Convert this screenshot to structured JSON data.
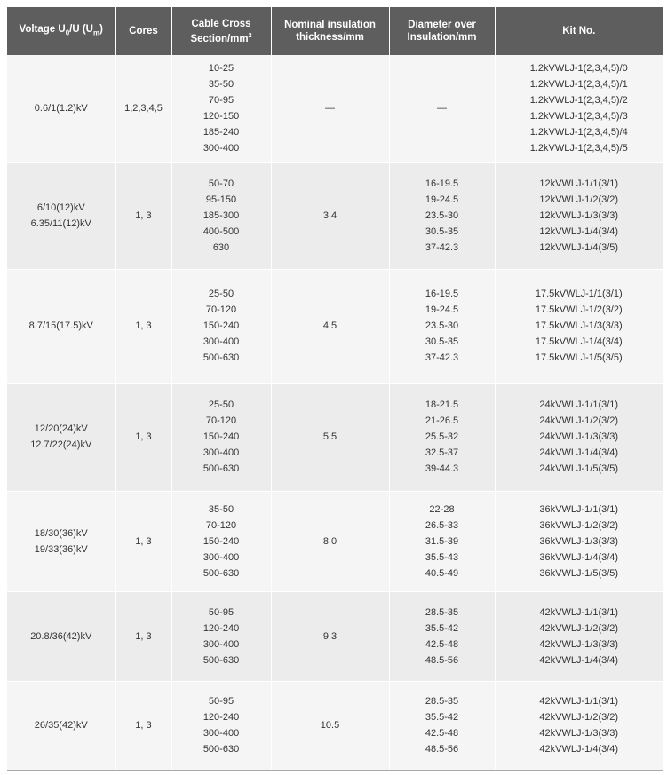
{
  "header": {
    "voltage": {
      "prefix": "Voltage U",
      "sub1": "0",
      "mid": "/U (U",
      "sub2": "m",
      "suffix": ")"
    },
    "cores": "Cores",
    "cross_section": {
      "line1": "Cable Cross",
      "line2": "Section/mm",
      "sup": "2"
    },
    "insulation": {
      "line1": "Nominal insulation",
      "line2": "thickness/mm"
    },
    "diameter": {
      "line1": "Diameter over",
      "line2": "Insulation/mm"
    },
    "kit": "Kit No."
  },
  "rows": [
    {
      "voltage": [
        "0.6/1(1.2)kV"
      ],
      "cores": "1,2,3,4,5",
      "sections": [
        "10-25",
        "35-50",
        "70-95",
        "120-150",
        "185-240",
        "300-400"
      ],
      "insulation": "—",
      "diameters": [
        "—"
      ],
      "kits": [
        "1.2kVWLJ-1(2,3,4,5)/0",
        "1.2kVWLJ-1(2,3,4,5)/1",
        "1.2kVWLJ-1(2,3,4,5)/2",
        "1.2kVWLJ-1(2,3,4,5)/3",
        "1.2kVWLJ-1(2,3,4,5)/4",
        "1.2kVWLJ-1(2,3,4,5)/5"
      ]
    },
    {
      "voltage": [
        "6/10(12)kV",
        "6.35/11(12)kV"
      ],
      "cores": "1, 3",
      "sections": [
        "50-70",
        "95-150",
        "185-300",
        "400-500",
        "630"
      ],
      "insulation": "3.4",
      "diameters": [
        "16-19.5",
        "19-24.5",
        "23.5-30",
        "30.5-35",
        "37-42.3"
      ],
      "kits": [
        "12kVWLJ-1/1(3/1)",
        "12kVWLJ-1/2(3/2)",
        "12kVWLJ-1/3(3/3)",
        "12kVWLJ-1/4(3/4)",
        "12kVWLJ-1/4(3/5)"
      ]
    },
    {
      "voltage": [
        "8.7/15(17.5)kV"
      ],
      "cores": "1, 3",
      "sections": [
        "25-50",
        "70-120",
        "150-240",
        "300-400",
        "500-630"
      ],
      "insulation": "4.5",
      "diameters": [
        "16-19.5",
        "19-24.5",
        "23.5-30",
        "30.5-35",
        "37-42.3"
      ],
      "kits": [
        "17.5kVWLJ-1/1(3/1)",
        "17.5kVWLJ-1/2(3/2)",
        "17.5kVWLJ-1/3(3/3)",
        "17.5kVWLJ-1/4(3/4)",
        "17.5kVWLJ-1/5(3/5)"
      ]
    },
    {
      "voltage": [
        "12/20(24)kV",
        "12.7/22(24)kV"
      ],
      "cores": "1, 3",
      "sections": [
        "25-50",
        "70-120",
        "150-240",
        "300-400",
        "500-630"
      ],
      "insulation": "5.5",
      "diameters": [
        "18-21.5",
        "21-26.5",
        "25.5-32",
        "32.5-37",
        "39-44.3"
      ],
      "kits": [
        "24kVWLJ-1/1(3/1)",
        "24kVWLJ-1/2(3/2)",
        "24kVWLJ-1/3(3/3)",
        "24kVWLJ-1/4(3/4)",
        "24kVWLJ-1/5(3/5)"
      ]
    },
    {
      "voltage": [
        "18/30(36)kV",
        "19/33(36)kV"
      ],
      "cores": "1, 3",
      "sections": [
        "35-50",
        "70-120",
        "150-240",
        "300-400",
        "500-630"
      ],
      "insulation": "8.0",
      "diameters": [
        "22-28",
        "26.5-33",
        "31.5-39",
        "35.5-43",
        "40.5-49"
      ],
      "kits": [
        "36kVWLJ-1/1(3/1)",
        "36kVWLJ-1/2(3/2)",
        "36kVWLJ-1/3(3/3)",
        "36kVWLJ-1/4(3/4)",
        "36kVWLJ-1/5(3/5)"
      ]
    },
    {
      "voltage": [
        "20.8/36(42)kV"
      ],
      "cores": "1, 3",
      "sections": [
        "50-95",
        "120-240",
        "300-400",
        "500-630"
      ],
      "insulation": "9.3",
      "diameters": [
        "28.5-35",
        "35.5-42",
        "42.5-48",
        "48.5-56"
      ],
      "kits": [
        "42kVWLJ-1/1(3/1)",
        "42kVWLJ-1/2(3/2)",
        "42kVWLJ-1/3(3/3)",
        "42kVWLJ-1/4(3/4)"
      ]
    },
    {
      "voltage": [
        "26/35(42)kV"
      ],
      "cores": "1, 3",
      "sections": [
        "50-95",
        "120-240",
        "300-400",
        "500-630"
      ],
      "insulation": "10.5",
      "diameters": [
        "28.5-35",
        "35.5-42",
        "42.5-48",
        "48.5-56"
      ],
      "kits": [
        "42kVWLJ-1/1(3/1)",
        "42kVWLJ-1/2(3/2)",
        "42kVWLJ-1/3(3/3)",
        "42kVWLJ-1/4(3/4)"
      ]
    }
  ]
}
